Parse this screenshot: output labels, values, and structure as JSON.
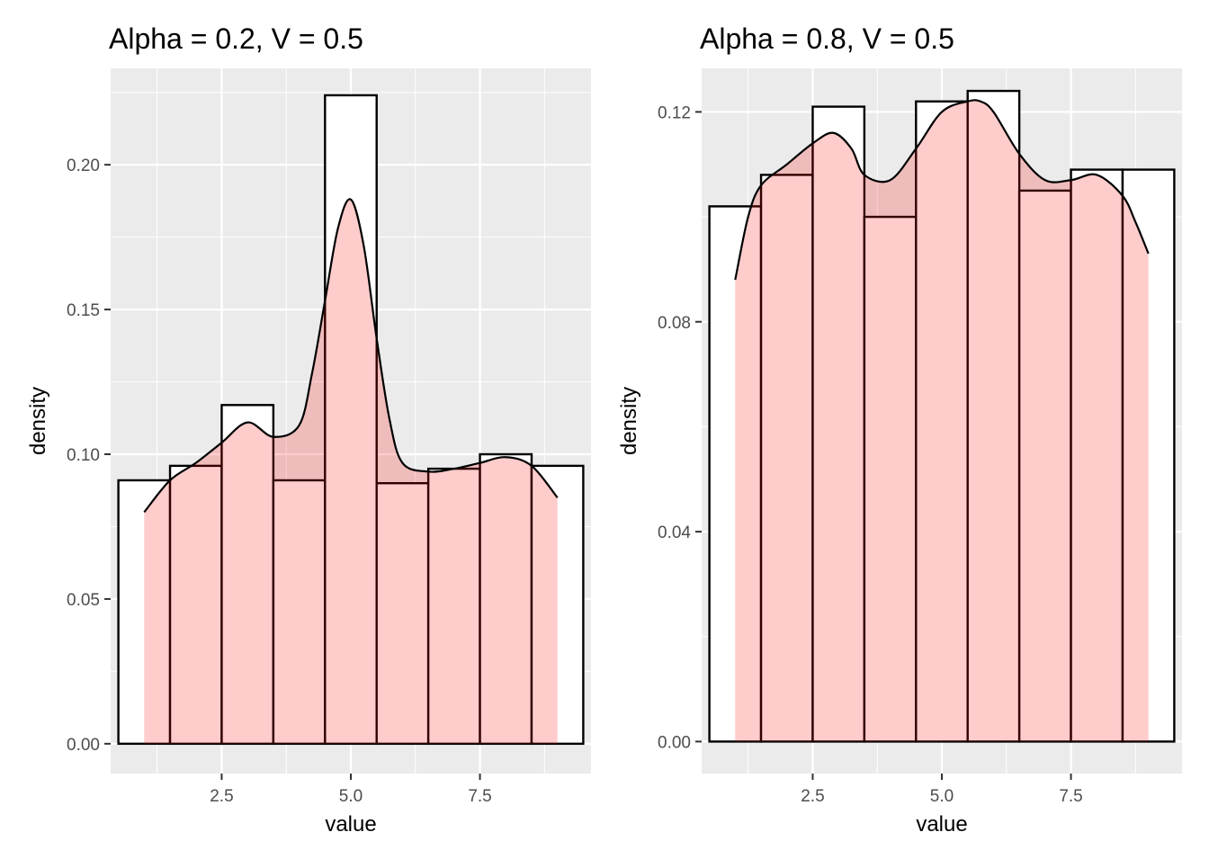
{
  "chart_data": [
    {
      "type": "bar",
      "title": "Alpha = 0.2, V = 0.5",
      "xlabel": "value",
      "ylabel": "density",
      "xlim": [
        0.35,
        9.65
      ],
      "ylim": [
        -0.0103,
        0.2333
      ],
      "xticks": [
        2.5,
        5.0,
        7.5
      ],
      "xtick_labels": [
        "2.5",
        "5.0",
        "7.5"
      ],
      "yticks": [
        0,
        0.05,
        0.1,
        0.15,
        0.2
      ],
      "ytick_labels": [
        "0.00",
        "0.05",
        "0.10",
        "0.15",
        "0.20"
      ],
      "histogram": {
        "bin_width": 1,
        "bin_centers": [
          1,
          2,
          3,
          4,
          5,
          6,
          7,
          8,
          9
        ],
        "values": [
          0.091,
          0.096,
          0.117,
          0.091,
          0.224,
          0.09,
          0.095,
          0.1,
          0.096
        ]
      },
      "density_curve": {
        "x": [
          1.0,
          1.5,
          2.0,
          2.5,
          3.0,
          3.5,
          4.0,
          4.25,
          4.5,
          4.75,
          5.0,
          5.25,
          5.5,
          5.75,
          6.0,
          6.5,
          7.0,
          7.5,
          8.0,
          8.5,
          9.0
        ],
        "y": [
          0.08,
          0.091,
          0.097,
          0.104,
          0.111,
          0.106,
          0.11,
          0.128,
          0.153,
          0.178,
          0.188,
          0.172,
          0.14,
          0.112,
          0.097,
          0.094,
          0.095,
          0.097,
          0.099,
          0.096,
          0.085
        ]
      }
    },
    {
      "type": "bar",
      "title": "Alpha = 0.8, V = 0.5",
      "xlabel": "value",
      "ylabel": "density",
      "xlim": [
        0.35,
        9.65
      ],
      "ylim": [
        -0.0061,
        0.1283
      ],
      "xticks": [
        2.5,
        5.0,
        7.5
      ],
      "xtick_labels": [
        "2.5",
        "5.0",
        "7.5"
      ],
      "yticks": [
        0,
        0.04,
        0.08,
        0.12
      ],
      "ytick_labels": [
        "0.00",
        "0.04",
        "0.08",
        "0.12"
      ],
      "histogram": {
        "bin_width": 1,
        "bin_centers": [
          1,
          2,
          3,
          4,
          5,
          6,
          7,
          8,
          9
        ],
        "values": [
          0.102,
          0.108,
          0.121,
          0.1,
          0.122,
          0.124,
          0.105,
          0.109,
          0.109
        ]
      },
      "density_curve": {
        "x": [
          1.0,
          1.25,
          1.5,
          2.0,
          2.5,
          2.9,
          3.25,
          3.5,
          4.0,
          4.5,
          5.0,
          5.5,
          5.75,
          6.0,
          6.5,
          7.0,
          7.5,
          8.0,
          8.5,
          8.75,
          9.0
        ],
        "y": [
          0.088,
          0.1,
          0.106,
          0.11,
          0.114,
          0.116,
          0.113,
          0.108,
          0.107,
          0.113,
          0.12,
          0.122,
          0.122,
          0.12,
          0.112,
          0.107,
          0.107,
          0.108,
          0.104,
          0.099,
          0.093
        ]
      }
    }
  ]
}
